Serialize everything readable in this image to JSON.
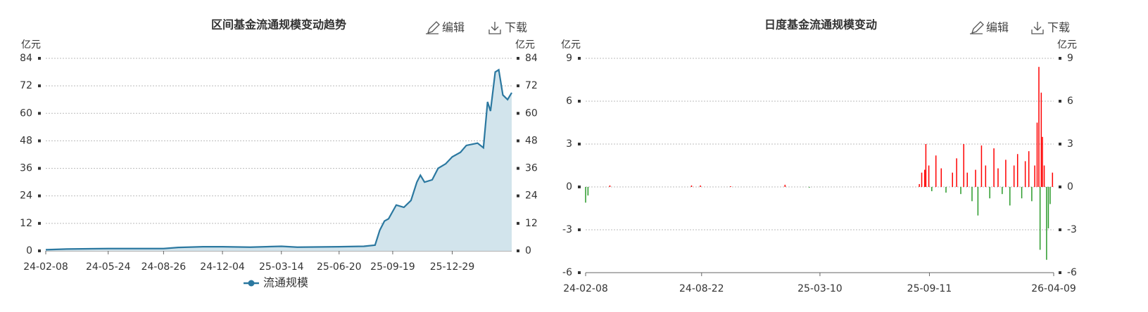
{
  "chart_data": [
    {
      "type": "area",
      "title": "区间基金流通规模变动趋势",
      "buttons": [
        "编辑",
        "下载"
      ],
      "y_label": "亿元",
      "y2_label": "亿元",
      "xlim": [
        "24-02-08",
        "26-04-09"
      ],
      "xticks": [
        "24-02-08",
        "24-05-24",
        "24-08-26",
        "24-12-04",
        "25-03-14",
        "25-06-20",
        "25-09-19",
        "25-12-29"
      ],
      "ylim": [
        0,
        84
      ],
      "yticks": [
        0,
        12,
        24,
        36,
        48,
        60,
        72,
        84
      ],
      "y2lim": [
        0,
        84
      ],
      "y2ticks": [
        0,
        12,
        24,
        36,
        48,
        60,
        72,
        84
      ],
      "grid": true,
      "legend": "bottom",
      "x": [
        "24-02-08",
        "24-03-15",
        "24-05-24",
        "24-08-26",
        "24-09-20",
        "24-11-01",
        "24-12-04",
        "25-01-20",
        "25-03-14",
        "25-04-10",
        "25-06-20",
        "25-08-01",
        "25-08-20",
        "25-08-28",
        "25-09-05",
        "25-09-12",
        "25-09-25",
        "25-10-08",
        "25-10-20",
        "25-10-30",
        "25-11-05",
        "25-11-12",
        "25-11-25",
        "25-12-05",
        "25-12-18",
        "25-12-29",
        "26-01-12",
        "26-01-22",
        "26-02-10",
        "26-02-20",
        "26-02-27",
        "26-03-04",
        "26-03-12",
        "26-03-18",
        "26-03-25",
        "26-04-02",
        "26-04-09"
      ],
      "series": [
        {
          "name": "流通规模",
          "color": "#2b78a0",
          "fill": "#d2e4ec",
          "values": [
            0.5,
            0.8,
            1.0,
            1.0,
            1.5,
            1.8,
            1.8,
            1.6,
            2.0,
            1.6,
            1.8,
            2.0,
            2.5,
            9,
            13,
            14,
            20,
            19,
            22,
            30,
            33,
            30,
            31,
            36,
            38,
            41,
            43,
            46,
            47,
            45,
            65,
            61,
            78,
            79,
            68,
            66,
            69
          ]
        }
      ]
    },
    {
      "type": "bar",
      "title": "日度基金流通规模变动",
      "buttons": [
        "编辑",
        "下载"
      ],
      "y_label": "亿元",
      "y2_label": "亿元",
      "xlim": [
        "24-02-08",
        "26-04-09"
      ],
      "xticks": [
        "24-02-08",
        "24-08-22",
        "25-03-10",
        "25-09-11",
        "26-04-09"
      ],
      "ylim": [
        -6,
        9
      ],
      "yticks": [
        -6,
        -3,
        0,
        3,
        6,
        9
      ],
      "y2lim": [
        -6,
        9
      ],
      "y2ticks": [
        -6,
        -3,
        0,
        3,
        6,
        9
      ],
      "grid": true,
      "up_color": "#ff0000",
      "down_color": "#2a9a2a",
      "x": [
        "24-02-08",
        "24-02-12",
        "24-03-20",
        "24-08-05",
        "24-08-20",
        "24-10-10",
        "25-01-10",
        "25-02-20",
        "25-08-25",
        "25-08-29",
        "25-09-03",
        "25-09-05",
        "25-09-10",
        "25-09-15",
        "25-09-22",
        "25-10-01",
        "25-10-09",
        "25-10-20",
        "25-10-27",
        "25-11-03",
        "25-11-08",
        "25-11-14",
        "25-11-22",
        "25-11-28",
        "25-12-02",
        "25-12-08",
        "25-12-15",
        "25-12-22",
        "25-12-29",
        "26-01-05",
        "26-01-12",
        "26-01-18",
        "26-01-25",
        "26-02-01",
        "26-02-07",
        "26-02-14",
        "26-02-20",
        "26-02-26",
        "26-03-03",
        "26-03-08",
        "26-03-12",
        "26-03-15",
        "26-03-17",
        "26-03-19",
        "26-03-21",
        "26-03-24",
        "26-03-28",
        "26-03-31",
        "26-04-03",
        "26-04-07"
      ],
      "values": [
        -1.1,
        -0.6,
        0.1,
        0.1,
        0.1,
        0.05,
        0.15,
        -0.05,
        0.2,
        1.0,
        1.2,
        3.0,
        1.5,
        -0.3,
        2.2,
        1.3,
        -0.4,
        1.0,
        2.0,
        -0.5,
        3.0,
        1.0,
        -1.0,
        1.2,
        -2.0,
        2.9,
        1.5,
        -0.8,
        2.7,
        1.3,
        -0.5,
        1.9,
        -1.3,
        1.5,
        2.3,
        -0.8,
        1.8,
        2.5,
        -1.0,
        1.5,
        4.5,
        8.4,
        -4.4,
        6.6,
        3.5,
        1.5,
        -5.1,
        -2.9,
        -1.2,
        1.0
      ]
    }
  ]
}
